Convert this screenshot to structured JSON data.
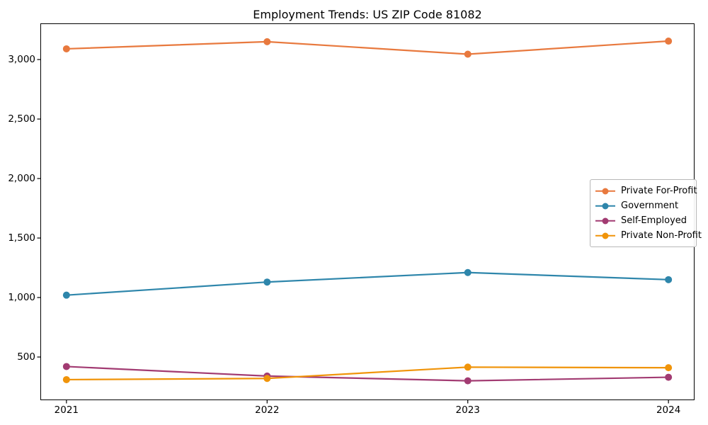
{
  "chart_data": {
    "type": "line",
    "title": "Employment Trends: US ZIP Code 81082",
    "x": [
      2021,
      2022,
      2023,
      2024
    ],
    "xticklabels": [
      "2021",
      "2022",
      "2023",
      "2024"
    ],
    "yticks": [
      500,
      1000,
      1500,
      2000,
      2500,
      3000
    ],
    "yticklabels": [
      "500",
      "1,000",
      "1,500",
      "2,000",
      "2,500",
      "3,000"
    ],
    "xlim": [
      2020.87,
      2024.13
    ],
    "ylim": [
      137,
      3304
    ],
    "grid": false,
    "legend_position": "center right",
    "marker": "circle",
    "series": [
      {
        "name": "Private For-Profit",
        "color": "#e8793e",
        "values": [
          3090,
          3150,
          3045,
          3155
        ]
      },
      {
        "name": "Government",
        "color": "#2e86ab",
        "values": [
          1020,
          1130,
          1210,
          1150
        ]
      },
      {
        "name": "Self-Employed",
        "color": "#a23b72",
        "values": [
          420,
          340,
          300,
          330
        ]
      },
      {
        "name": "Private Non-Profit",
        "color": "#f0940a",
        "values": [
          310,
          320,
          415,
          410
        ]
      }
    ]
  }
}
